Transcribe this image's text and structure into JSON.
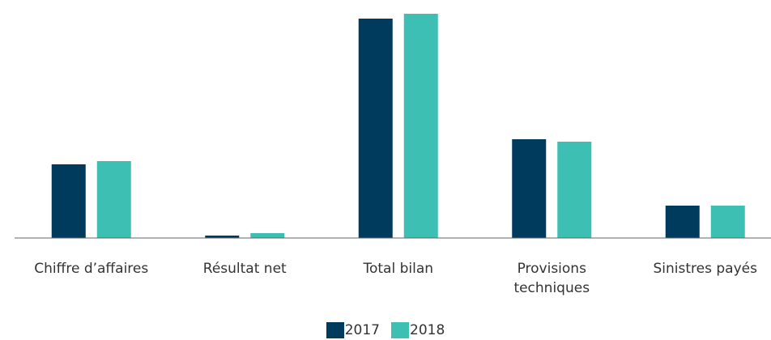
{
  "chart_data": {
    "type": "bar",
    "categories": [
      "Chiffre d’affaires",
      "Résultat net",
      "Total bilan",
      "Provisions techniques",
      "Sinistres payés"
    ],
    "series": [
      {
        "name": "2017",
        "color": "#003a5c",
        "values": [
          91,
          3,
          271,
          122,
          40
        ]
      },
      {
        "name": "2018",
        "color": "#3dbfb3",
        "values": [
          95,
          6,
          277,
          119,
          40
        ]
      }
    ],
    "ylim": [
      0,
      280
    ]
  }
}
